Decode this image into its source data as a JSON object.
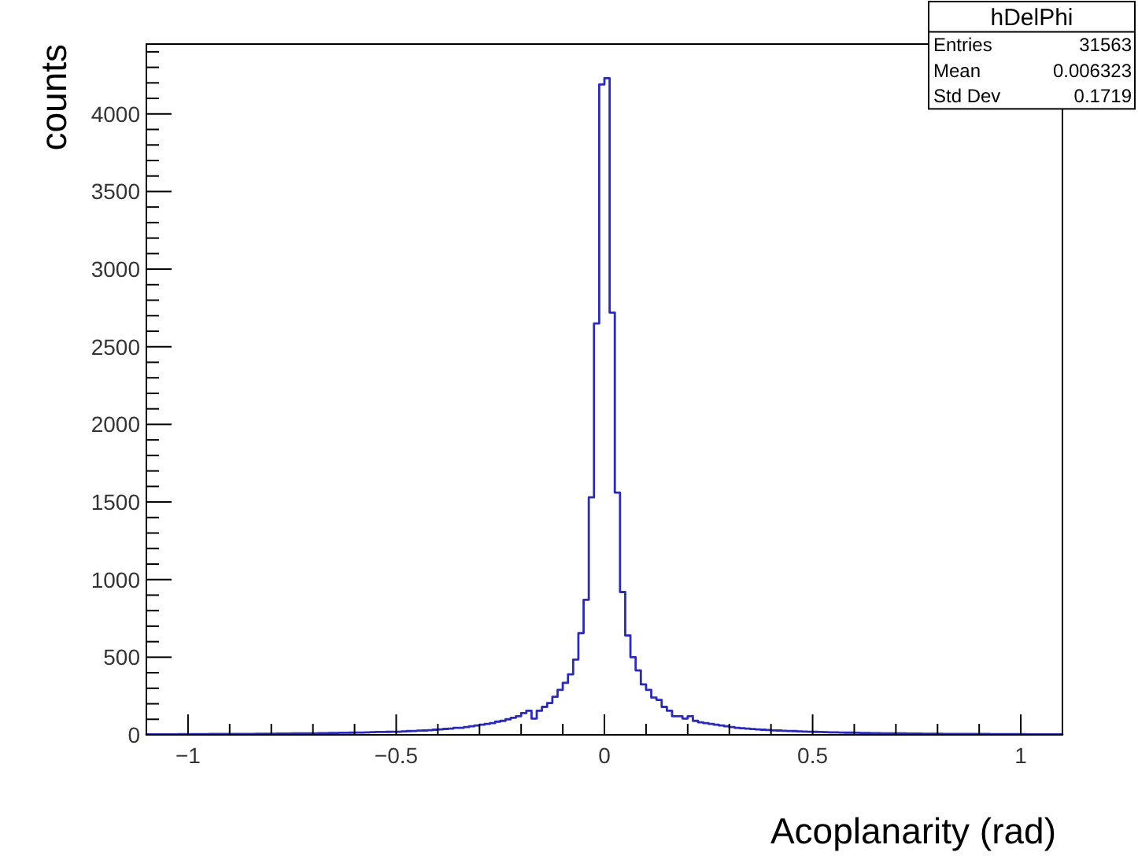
{
  "chart_data": {
    "type": "histogram",
    "xlabel": "Acoplanarity (rad)",
    "ylabel": "counts",
    "annotations": [
      "hDelPhi",
      "Entries",
      "31563",
      "Mean",
      "0.006323",
      "Std Dev",
      "0.1719"
    ],
    "color": "#2b2bb8",
    "bins": [
      -1.1,
      -1.0875,
      -1.075,
      -1.0625,
      -1.05,
      -1.0375,
      -1.025,
      -1.0125,
      -1,
      -0.9875,
      -0.975,
      -0.9625,
      -0.95,
      -0.9375,
      -0.925,
      -0.9125,
      -0.9,
      -0.8875,
      -0.875,
      -0.8625,
      -0.85,
      -0.8375,
      -0.825,
      -0.8125,
      -0.8,
      -0.7875,
      -0.775,
      -0.7625,
      -0.75,
      -0.7375,
      -0.725,
      -0.7125,
      -0.7,
      -0.6875,
      -0.675,
      -0.6625,
      -0.65,
      -0.6375,
      -0.625,
      -0.6125,
      -0.6,
      -0.5875,
      -0.575,
      -0.5625,
      -0.55,
      -0.5375,
      -0.525,
      -0.5125,
      -0.5,
      -0.4875,
      -0.475,
      -0.4625,
      -0.45,
      -0.4375,
      -0.425,
      -0.4125,
      -0.4,
      -0.3875,
      -0.375,
      -0.3625,
      -0.35,
      -0.3375,
      -0.325,
      -0.3125,
      -0.3,
      -0.2875,
      -0.275,
      -0.2625,
      -0.25,
      -0.2375,
      -0.225,
      -0.2125,
      -0.2,
      -0.1875,
      -0.175,
      -0.1625,
      -0.15,
      -0.1375,
      -0.125,
      -0.1125,
      -0.1,
      -0.0875,
      -0.075,
      -0.0625,
      -0.05,
      -0.0375,
      -0.025,
      -0.0125,
      0,
      0.0125,
      0.025,
      0.0375,
      0.05,
      0.0625,
      0.075,
      0.0875,
      0.1,
      0.1125,
      0.125,
      0.1375,
      0.15,
      0.1625,
      0.175,
      0.1875,
      0.2,
      0.2125,
      0.225,
      0.2375,
      0.25,
      0.2625,
      0.275,
      0.2875,
      0.3,
      0.3125,
      0.325,
      0.3375,
      0.35,
      0.3625,
      0.375,
      0.3875,
      0.4,
      0.4125,
      0.425,
      0.4375,
      0.45,
      0.4625,
      0.475,
      0.4875,
      0.5,
      0.5125,
      0.525,
      0.5375,
      0.55,
      0.5625,
      0.575,
      0.5875,
      0.6,
      0.6125,
      0.625,
      0.6375,
      0.65,
      0.6625,
      0.675,
      0.6875,
      0.7,
      0.7125,
      0.725,
      0.7375,
      0.75,
      0.7625,
      0.775,
      0.7875,
      0.8,
      0.8125,
      0.825,
      0.8375,
      0.85,
      0.8625,
      0.875,
      0.8875,
      0.9,
      0.9125,
      0.925,
      0.9375,
      0.95,
      0.9625,
      0.975,
      0.9875,
      1,
      1.0125,
      1.025,
      1.0375,
      1.05,
      1.0625,
      1.075,
      1.0875,
      1.1
    ],
    "values": [
      3,
      3,
      3,
      3,
      3,
      3,
      4,
      4,
      4,
      4,
      4,
      4,
      5,
      5,
      5,
      5,
      5,
      6,
      6,
      6,
      6,
      7,
      7,
      7,
      7,
      8,
      8,
      8,
      9,
      9,
      9,
      10,
      10,
      11,
      11,
      12,
      12,
      13,
      13,
      14,
      15,
      15,
      16,
      17,
      18,
      18,
      19,
      20,
      20,
      22,
      24,
      25,
      27,
      28,
      30,
      33,
      35,
      38,
      40,
      45,
      45,
      50,
      55,
      60,
      65,
      70,
      75,
      85,
      90,
      100,
      110,
      120,
      140,
      155,
      105,
      155,
      180,
      205,
      245,
      290,
      335,
      390,
      485,
      655,
      870,
      1530,
      2650,
      4190,
      4230,
      2720,
      1560,
      920,
      640,
      500,
      415,
      325,
      290,
      240,
      225,
      180,
      155,
      120,
      120,
      105,
      120,
      90,
      80,
      75,
      70,
      65,
      60,
      55,
      50,
      45,
      42,
      40,
      37,
      35,
      33,
      31,
      29,
      28,
      26,
      25,
      24,
      22,
      21,
      20,
      19,
      18,
      17,
      16,
      16,
      15,
      14,
      14,
      13,
      12,
      12,
      11,
      11,
      10,
      10,
      9,
      9,
      9,
      8,
      8,
      8,
      7,
      7,
      7,
      7,
      6,
      6,
      6,
      6,
      5,
      5,
      5,
      5,
      5,
      4,
      4,
      4,
      4,
      4,
      4,
      4,
      3,
      3,
      3,
      3,
      3,
      3,
      3
    ],
    "xlim": [
      -1.1,
      1.1
    ],
    "ylim": [
      0,
      4450
    ],
    "xticks": [
      {
        "value": -1,
        "label": "−1"
      },
      {
        "value": -0.9,
        "label": null
      },
      {
        "value": -0.8,
        "label": null
      },
      {
        "value": -0.7,
        "label": null
      },
      {
        "value": -0.6,
        "label": null
      },
      {
        "value": -0.5,
        "label": "−0.5"
      },
      {
        "value": -0.4,
        "label": null
      },
      {
        "value": -0.3,
        "label": null
      },
      {
        "value": -0.2,
        "label": null
      },
      {
        "value": -0.1,
        "label": null
      },
      0,
      {
        "value": 0.1,
        "label": null
      },
      {
        "value": 0.2,
        "label": null
      },
      {
        "value": 0.3,
        "label": null
      },
      {
        "value": 0.4,
        "label": null
      },
      0.5,
      {
        "value": 0.6,
        "label": null
      },
      {
        "value": 0.7,
        "label": null
      },
      {
        "value": 0.8,
        "label": null
      },
      {
        "value": 0.9,
        "label": null
      },
      1
    ],
    "yticks": [
      0,
      {
        "value": 100,
        "label": null
      },
      {
        "value": 200,
        "label": null
      },
      {
        "value": 300,
        "label": null
      },
      {
        "value": 400,
        "label": null
      },
      500,
      {
        "value": 600,
        "label": null
      },
      {
        "value": 700,
        "label": null
      },
      {
        "value": 800,
        "label": null
      },
      {
        "value": 900,
        "label": null
      },
      1000,
      {
        "value": 1100,
        "label": null
      },
      {
        "value": 1200,
        "label": null
      },
      {
        "value": 1300,
        "label": null
      },
      {
        "value": 1400,
        "label": null
      },
      1500,
      {
        "value": 1600,
        "label": null
      },
      {
        "value": 1700,
        "label": null
      },
      {
        "value": 1800,
        "label": null
      },
      {
        "value": 1900,
        "label": null
      },
      2000,
      {
        "value": 2100,
        "label": null
      },
      {
        "value": 2200,
        "label": null
      },
      {
        "value": 2300,
        "label": null
      },
      {
        "value": 2400,
        "label": null
      },
      2500,
      {
        "value": 2600,
        "label": null
      },
      {
        "value": 2700,
        "label": null
      },
      {
        "value": 2800,
        "label": null
      },
      {
        "value": 2900,
        "label": null
      },
      3000,
      {
        "value": 3100,
        "label": null
      },
      {
        "value": 3200,
        "label": null
      },
      {
        "value": 3300,
        "label": null
      },
      {
        "value": 3400,
        "label": null
      },
      3500,
      {
        "value": 3600,
        "label": null
      },
      {
        "value": 3700,
        "label": null
      },
      {
        "value": 3800,
        "label": null
      },
      {
        "value": 3900,
        "label": null
      },
      4000,
      {
        "value": 4100,
        "label": null
      },
      {
        "value": 4200,
        "label": null
      },
      {
        "value": 4300,
        "label": null
      },
      {
        "value": 4400,
        "label": null
      }
    ],
    "grid": false
  }
}
